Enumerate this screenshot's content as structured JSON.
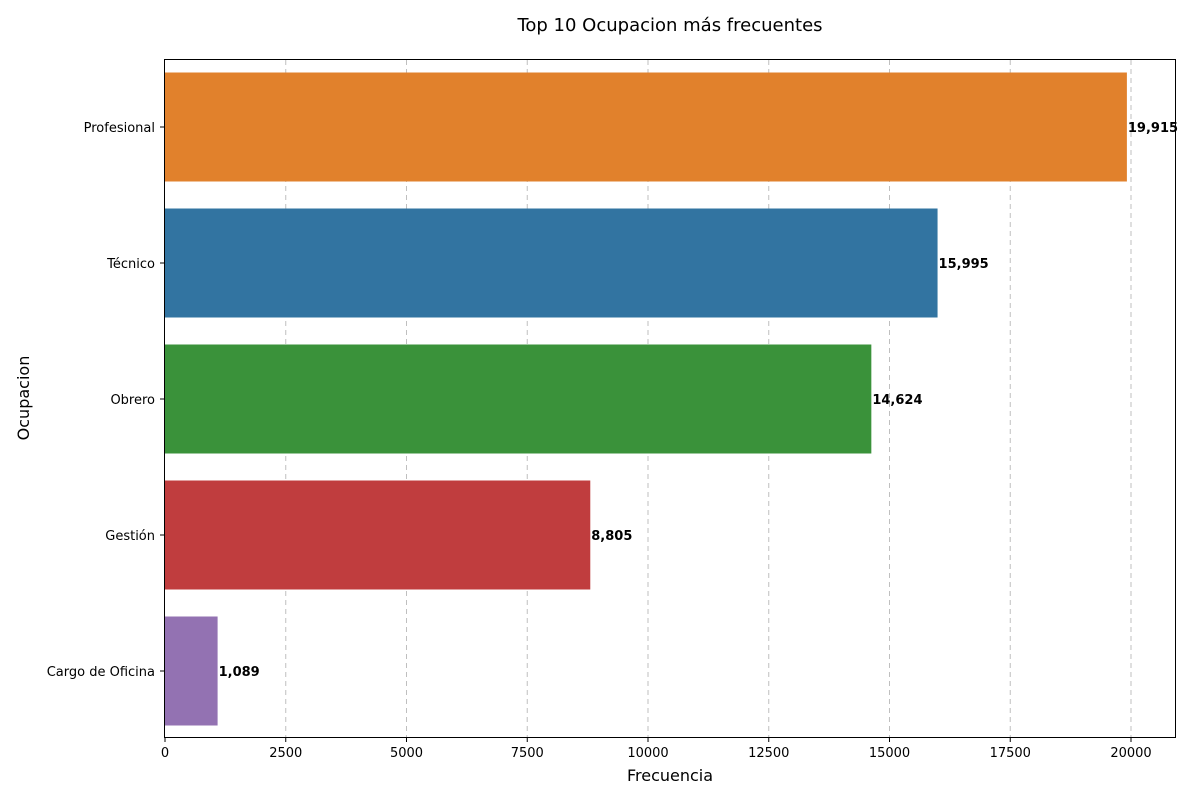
{
  "chart_data": {
    "type": "bar",
    "orientation": "horizontal",
    "title": "Top 10 Ocupacion más frecuentes",
    "xlabel": "Frecuencia",
    "ylabel": "Ocupacion",
    "categories": [
      "Profesional",
      "Técnico",
      "Obrero",
      "Gestión",
      "Cargo de Oficina"
    ],
    "values": [
      19915,
      15995,
      14624,
      8805,
      1089
    ],
    "value_labels": [
      "19,915",
      "15,995",
      "14,624",
      "8,805",
      "1,089"
    ],
    "colors": [
      "#e1812c",
      "#3274a1",
      "#3a923a",
      "#c03d3e",
      "#9372b2"
    ],
    "xlim": [
      0,
      20911
    ],
    "xticks": [
      0,
      2500,
      5000,
      7500,
      10000,
      12500,
      15000,
      17500,
      20000
    ],
    "xtick_labels": [
      "0",
      "2500",
      "5000",
      "7500",
      "10000",
      "12500",
      "15000",
      "17500",
      "20000"
    ],
    "grid": "x-dashed",
    "legend": "none"
  }
}
